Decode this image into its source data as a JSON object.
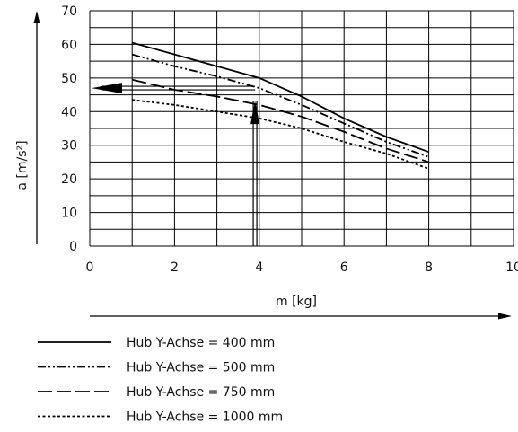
{
  "chart_data": {
    "type": "line",
    "xlabel": "m [kg]",
    "ylabel": "a [m/s²]",
    "xlim": [
      0,
      10
    ],
    "ylim": [
      0,
      70
    ],
    "x_ticks": [
      0,
      2,
      4,
      6,
      8,
      10
    ],
    "y_ticks": [
      0,
      10,
      20,
      30,
      40,
      50,
      60,
      70
    ],
    "grid": true,
    "legend_position": "bottom",
    "series": [
      {
        "name": "Hub Y-Achse = 400 mm",
        "style": "solid",
        "x": [
          1,
          2,
          3,
          4,
          5,
          6,
          7,
          8
        ],
        "y": [
          60.5,
          57,
          53.5,
          50,
          44.5,
          38,
          32.5,
          28
        ]
      },
      {
        "name": "Hub Y-Achse = 500 mm",
        "style": "dash-dot-dot",
        "x": [
          1,
          2,
          3,
          4,
          5,
          6,
          7,
          8
        ],
        "y": [
          57,
          53.5,
          50.5,
          47,
          42,
          36.5,
          31,
          26.5
        ]
      },
      {
        "name": "Hub Y-Achse = 750 mm",
        "style": "long-dash",
        "x": [
          1,
          2,
          3,
          4,
          5,
          6,
          7,
          8
        ],
        "y": [
          49.5,
          46.5,
          44.5,
          42,
          38.5,
          34,
          29,
          25
        ]
      },
      {
        "name": "Hub Y-Achse = 1000 mm",
        "style": "short-dash",
        "x": [
          1,
          2,
          3,
          4,
          5,
          6,
          7,
          8
        ],
        "y": [
          43.5,
          42,
          40,
          38,
          35,
          31,
          27.5,
          23
        ]
      }
    ],
    "annotation": {
      "reading_x": 3.9,
      "reading_y": 47
    }
  }
}
